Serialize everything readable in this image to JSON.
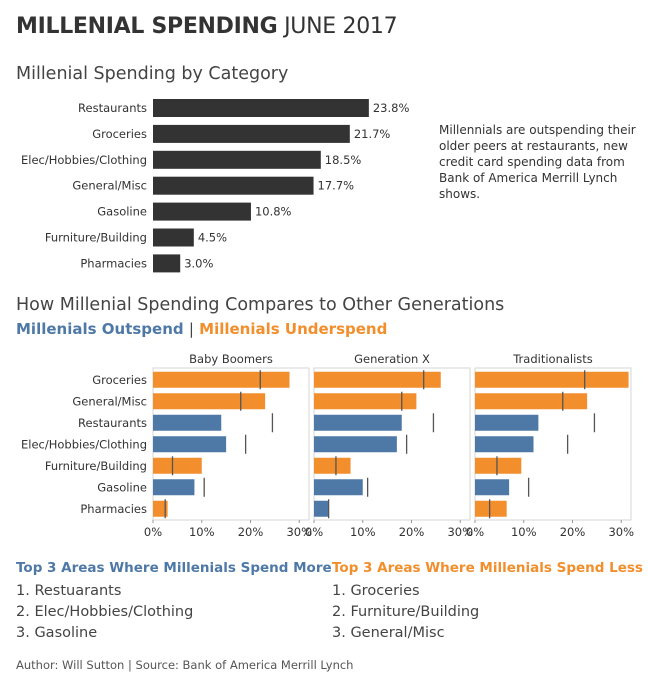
{
  "header": {
    "title_bold": "MILLENIAL SPENDING",
    "title_light": "JUNE 2017"
  },
  "chart1": {
    "title": "Millenial Spending by Category"
  },
  "annotation": "Millennials are outspending their older peers at restaurants, new credit card spending data from Bank of America Merrill Lynch shows.",
  "chart2": {
    "title": "How Millenial Spending Compares to Other Generations",
    "legend_outspend": "Millenials Outspend",
    "legend_separator": "|",
    "legend_underspend": "Millenials Underspend"
  },
  "colors": {
    "bar_dark": "#333333",
    "outspend": "#4e79a7",
    "underspend": "#f28e2b",
    "reference": "#555555"
  },
  "chart_data": [
    {
      "type": "bar",
      "orientation": "horizontal",
      "title": "Millenial Spending by Category",
      "categories": [
        "Restaurants",
        "Groceries",
        "Elec/Hobbies/Clothing",
        "General/Misc",
        "Gasoline",
        "Furniture/Building",
        "Pharmacies"
      ],
      "values": [
        23.8,
        21.7,
        18.5,
        17.7,
        10.8,
        4.5,
        3.0
      ],
      "labels": [
        "23.8%",
        "21.7%",
        "18.5%",
        "17.7%",
        "10.8%",
        "4.5%",
        "3.0%"
      ],
      "xlim": [
        0,
        30
      ]
    },
    {
      "type": "bar",
      "orientation": "horizontal",
      "title": "How Millenial Spending Compares to Other Generations",
      "categories": [
        "Groceries",
        "General/Misc",
        "Restaurants",
        "Elec/Hobbies/Clothing",
        "Furniture/Building",
        "Gasoline",
        "Pharmacies"
      ],
      "xlim": [
        0,
        32
      ],
      "xticks": [
        "0%",
        "10%",
        "20%",
        "30%"
      ],
      "grid": false,
      "panels": [
        {
          "name": "Baby Boomers",
          "values": [
            28,
            23,
            14,
            15,
            10,
            8.5,
            3
          ],
          "reference": [
            22,
            18,
            24.5,
            19,
            4,
            10.5,
            2.5
          ],
          "status": [
            "under",
            "under",
            "out",
            "out",
            "under",
            "out",
            "under"
          ]
        },
        {
          "name": "Generation X",
          "values": [
            26,
            21,
            18,
            17,
            7.5,
            10,
            3
          ],
          "reference": [
            22.5,
            18,
            24.5,
            19,
            4.5,
            11,
            3
          ],
          "status": [
            "under",
            "under",
            "out",
            "out",
            "under",
            "out",
            "out"
          ]
        },
        {
          "name": "Traditionalists",
          "values": [
            31.5,
            23,
            13,
            12,
            9.5,
            7,
            6.5
          ],
          "reference": [
            22.5,
            18,
            24.5,
            19,
            4.5,
            11,
            3
          ],
          "status": [
            "under",
            "under",
            "out",
            "out",
            "under",
            "out",
            "under"
          ]
        }
      ]
    }
  ],
  "top_more": {
    "heading": "Top 3 Areas Where Millenials Spend More",
    "items": [
      "1. Restuarants",
      "2. Elec/Hobbies/Clothing",
      "3. Gasoline"
    ]
  },
  "top_less": {
    "heading": "Top 3 Areas Where Millenials Spend Less",
    "items": [
      "1. Groceries",
      "2. Furniture/Building",
      "3. General/Misc"
    ]
  },
  "footer": {
    "credit": "Author: Will Sutton | Source: Bank of America Merrill Lynch"
  }
}
